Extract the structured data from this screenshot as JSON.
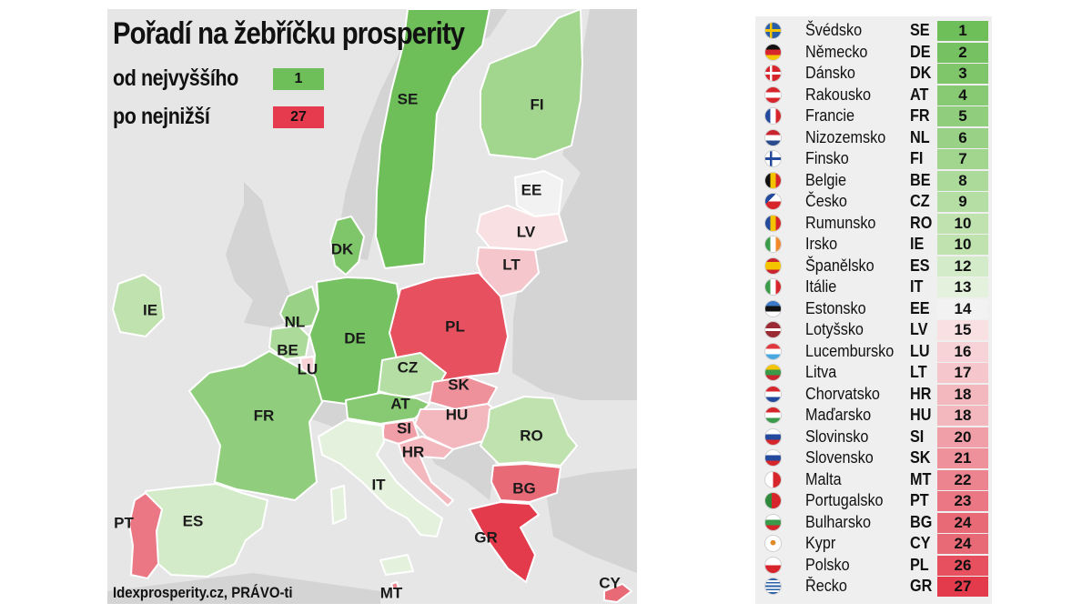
{
  "map": {
    "title": "Pořadí na žebříčku prosperity",
    "legend": {
      "highest": {
        "label": "od nejvyššího",
        "value": "1",
        "color": "#6ebe5a"
      },
      "lowest": {
        "label": "po nejnižší",
        "value": "27",
        "color": "#e63a4e"
      }
    },
    "source": "Idexprosperity.cz, PRÁVO-ti",
    "labels": [
      "SE",
      "FI",
      "EE",
      "LV",
      "LT",
      "DK",
      "IE",
      "NL",
      "BE",
      "LU",
      "DE",
      "PL",
      "CZ",
      "SK",
      "AT",
      "HU",
      "SI",
      "HR",
      "FR",
      "RO",
      "IT",
      "BG",
      "PT",
      "ES",
      "GR",
      "MT",
      "CY"
    ]
  },
  "ranking": [
    {
      "name": "Švédsko",
      "code": "SE",
      "rank": "1",
      "color": "#6ebe5a",
      "flag": "sweden-flag"
    },
    {
      "name": "Německo",
      "code": "DE",
      "rank": "2",
      "color": "#76c262",
      "flag": "germany-flag"
    },
    {
      "name": "Dánsko",
      "code": "DK",
      "rank": "3",
      "color": "#7fc66b",
      "flag": "denmark-flag"
    },
    {
      "name": "Rakousko",
      "code": "AT",
      "rank": "4",
      "color": "#88ca74",
      "flag": "austria-flag"
    },
    {
      "name": "Francie",
      "code": "FR",
      "rank": "5",
      "color": "#90ce7d",
      "flag": "france-flag"
    },
    {
      "name": "Nizozemsko",
      "code": "NL",
      "rank": "6",
      "color": "#99d286",
      "flag": "netherlands-flag"
    },
    {
      "name": "Finsko",
      "code": "FI",
      "rank": "7",
      "color": "#a2d68f",
      "flag": "finland-flag"
    },
    {
      "name": "Belgie",
      "code": "BE",
      "rank": "8",
      "color": "#acda9a",
      "flag": "belgium-flag"
    },
    {
      "name": "Česko",
      "code": "CZ",
      "rank": "9",
      "color": "#b5dea4",
      "flag": "czechia-flag"
    },
    {
      "name": "Rumunsko",
      "code": "RO",
      "rank": "10",
      "color": "#bfe2ae",
      "flag": "romania-flag"
    },
    {
      "name": "Irsko",
      "code": "IE",
      "rank": "10",
      "color": "#bfe2ae",
      "flag": "ireland-flag"
    },
    {
      "name": "Španělsko",
      "code": "ES",
      "rank": "12",
      "color": "#d4ebc9",
      "flag": "spain-flag"
    },
    {
      "name": "Itálie",
      "code": "IT",
      "rank": "13",
      "color": "#e4f1dd",
      "flag": "italy-flag"
    },
    {
      "name": "Estonsko",
      "code": "EE",
      "rank": "14",
      "color": "#f2f2f2",
      "flag": "estonia-flag"
    },
    {
      "name": "Lotyšsko",
      "code": "LV",
      "rank": "15",
      "color": "#f9e1e3",
      "flag": "latvia-flag"
    },
    {
      "name": "Lucembursko",
      "code": "LU",
      "rank": "16",
      "color": "#f7d3d7",
      "flag": "luxembourg-flag"
    },
    {
      "name": "Litva",
      "code": "LT",
      "rank": "17",
      "color": "#f5c6cb",
      "flag": "lithuania-flag"
    },
    {
      "name": "Chorvatsko",
      "code": "HR",
      "rank": "18",
      "color": "#f3b8be",
      "flag": "croatia-flag"
    },
    {
      "name": "Maďarsko",
      "code": "HU",
      "rank": "18",
      "color": "#f3b8be",
      "flag": "hungary-flag"
    },
    {
      "name": "Slovinsko",
      "code": "SI",
      "rank": "20",
      "color": "#f09ea7",
      "flag": "slovenia-flag"
    },
    {
      "name": "Slovensko",
      "code": "SK",
      "rank": "21",
      "color": "#ee919b",
      "flag": "slovakia-flag"
    },
    {
      "name": "Malta",
      "code": "MT",
      "rank": "22",
      "color": "#ec848f",
      "flag": "malta-flag"
    },
    {
      "name": "Portugalsko",
      "code": "PT",
      "rank": "23",
      "color": "#ea7783",
      "flag": "portugal-flag"
    },
    {
      "name": "Bulharsko",
      "code": "BG",
      "rank": "24",
      "color": "#e86a77",
      "flag": "bulgaria-flag"
    },
    {
      "name": "Kypr",
      "code": "CY",
      "rank": "24",
      "color": "#e86a77",
      "flag": "cyprus-flag"
    },
    {
      "name": "Polsko",
      "code": "PL",
      "rank": "26",
      "color": "#e6505f",
      "flag": "poland-flag"
    },
    {
      "name": "Řecko",
      "code": "GR",
      "rank": "27",
      "color": "#e33a4c",
      "flag": "greece-flag"
    }
  ]
}
